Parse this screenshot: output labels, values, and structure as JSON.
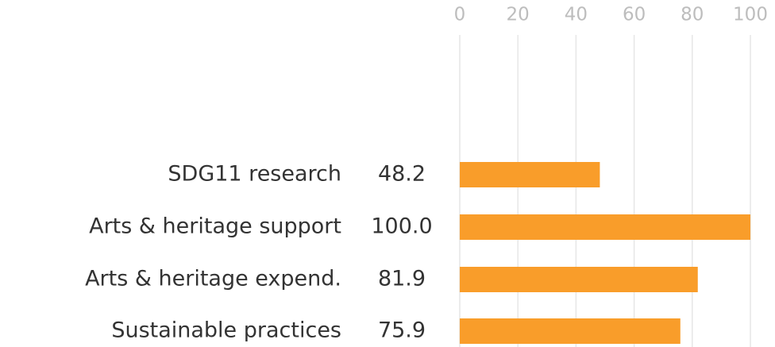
{
  "chart_data": {
    "type": "bar",
    "orientation": "horizontal",
    "categories": [
      "SDG11 research",
      "Arts & heritage support",
      "Arts & heritage expend.",
      "Sustainable practices"
    ],
    "values": [
      48.2,
      100.0,
      81.9,
      75.9
    ],
    "value_labels": [
      "48.2",
      "100.0",
      "81.9",
      "75.9"
    ],
    "color": "#f99d2a",
    "xlim": [
      0,
      100
    ],
    "xticks": [
      0,
      20,
      40,
      60,
      80,
      100
    ],
    "grid": true
  }
}
